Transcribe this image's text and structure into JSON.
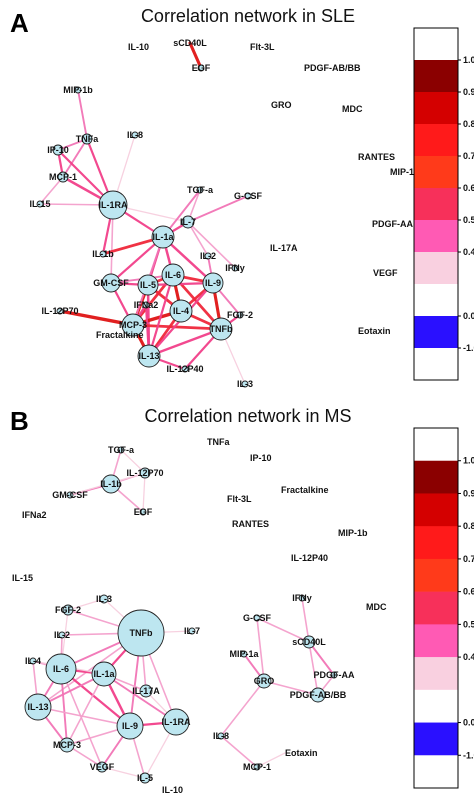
{
  "colors": {
    "node_fill": "#bde6f0",
    "node_stroke": "#222222"
  },
  "colorbar": {
    "bands": [
      "#ffffff",
      "#8b0000",
      "#d40000",
      "#ff1a1a",
      "#ff3a1a",
      "#f7305a",
      "#ff5ab4",
      "#f9d0e0",
      "#ffffff",
      "#2a10ff",
      "#ffffff"
    ],
    "ticks": [
      "1.0",
      "0.9",
      "0.8",
      "0.7",
      "0.6",
      "0.5",
      "0.4",
      "0.0",
      "-1.0"
    ]
  },
  "panels": [
    {
      "letter": "A",
      "title": "Correlation network in SLE",
      "nodes": [
        {
          "id": "sCD40L",
          "label": "sCD40L"
        },
        {
          "id": "IL-10",
          "label": "IL-10"
        },
        {
          "id": "Flt-3L",
          "label": "Flt-3L"
        },
        {
          "id": "EGF",
          "label": "EGF"
        },
        {
          "id": "PDGF-AB/BB",
          "label": "PDGF-AB/BB"
        },
        {
          "id": "MIP-1b",
          "label": "MIP-1b"
        },
        {
          "id": "GRO",
          "label": "GRO"
        },
        {
          "id": "MDC",
          "label": "MDC"
        },
        {
          "id": "IL-8",
          "label": "IL-8"
        },
        {
          "id": "TNFa",
          "label": "TNFa"
        },
        {
          "id": "IP-10",
          "label": "IP-10"
        },
        {
          "id": "RANTES",
          "label": "RANTES"
        },
        {
          "id": "MCP-1",
          "label": "MCP-1"
        },
        {
          "id": "MIP-1a",
          "label": "MIP-1a"
        },
        {
          "id": "IL-15",
          "label": "IL-15"
        },
        {
          "id": "IL-1RA",
          "label": "IL-1RA"
        },
        {
          "id": "TGF-a",
          "label": "TGF-a"
        },
        {
          "id": "G-CSF",
          "label": "G-CSF"
        },
        {
          "id": "IL-7",
          "label": "IL-7"
        },
        {
          "id": "PDGF-AA",
          "label": "PDGF-AA"
        },
        {
          "id": "IL-1a",
          "label": "IL-1a"
        },
        {
          "id": "IL-1b",
          "label": "IL-1b"
        },
        {
          "id": "IL-2",
          "label": "IL-2"
        },
        {
          "id": "IL-17A",
          "label": "IL-17A"
        },
        {
          "id": "IFNy",
          "label": "IFNy"
        },
        {
          "id": "GM-CSF",
          "label": "GM-CSF"
        },
        {
          "id": "IL-6",
          "label": "IL-6"
        },
        {
          "id": "IL-5",
          "label": "IL-5"
        },
        {
          "id": "IL-9",
          "label": "IL-9"
        },
        {
          "id": "VEGF",
          "label": "VEGF"
        },
        {
          "id": "IL-12P70",
          "label": "IL-12P70"
        },
        {
          "id": "IFNa2",
          "label": "IFNa2"
        },
        {
          "id": "IL-4",
          "label": "IL-4"
        },
        {
          "id": "FGF-2",
          "label": "FGF-2"
        },
        {
          "id": "MCP-3",
          "label": "MCP-3"
        },
        {
          "id": "TNFb",
          "label": "TNFb"
        },
        {
          "id": "Fractalkine",
          "label": "Fractalkine"
        },
        {
          "id": "Eotaxin",
          "label": "Eotaxin"
        },
        {
          "id": "IL-13",
          "label": "IL-13"
        },
        {
          "id": "IL-12P40",
          "label": "IL-12P40"
        },
        {
          "id": "IL-3",
          "label": "IL-3"
        }
      ],
      "edges": [
        [
          "sCD40L",
          "EGF",
          0.75
        ],
        [
          "TNFa",
          "IP-10",
          0.55
        ],
        [
          "TNFa",
          "MCP-1",
          0.55
        ],
        [
          "TNFa",
          "IL-1RA",
          0.6
        ],
        [
          "TNFa",
          "MIP-1b",
          0.55
        ],
        [
          "IP-10",
          "MCP-1",
          0.6
        ],
        [
          "IP-10",
          "IL-1RA",
          0.6
        ],
        [
          "MCP-1",
          "IL-15",
          0.5
        ],
        [
          "MCP-1",
          "IL-1RA",
          0.65
        ],
        [
          "IL-15",
          "IL-1RA",
          0.5
        ],
        [
          "IL-8",
          "IL-1RA",
          0.45
        ],
        [
          "IL-1RA",
          "IL-1a",
          0.6
        ],
        [
          "IL-1RA",
          "IL-1b",
          0.6
        ],
        [
          "IL-1RA",
          "GM-CSF",
          0.5
        ],
        [
          "IL-1RA",
          "IL-7",
          0.45
        ],
        [
          "TGF-a",
          "IL-7",
          0.5
        ],
        [
          "TGF-a",
          "IL-1a",
          0.55
        ],
        [
          "G-CSF",
          "IL-7",
          0.55
        ],
        [
          "IL-7",
          "IL-2",
          0.5
        ],
        [
          "IL-7",
          "IL-1a",
          0.6
        ],
        [
          "IL-7",
          "IFNy",
          0.5
        ],
        [
          "IL-1b",
          "IL-1a",
          0.7
        ],
        [
          "IL-1a",
          "IL-6",
          0.65
        ],
        [
          "IL-1a",
          "IL-5",
          0.6
        ],
        [
          "IL-1a",
          "IL-9",
          0.65
        ],
        [
          "IL-1a",
          "GM-CSF",
          0.6
        ],
        [
          "IL-2",
          "IL-9",
          0.55
        ],
        [
          "GM-CSF",
          "IL-5",
          0.6
        ],
        [
          "GM-CSF",
          "IL-6",
          0.55
        ],
        [
          "GM-CSF",
          "MCP-3",
          0.6
        ],
        [
          "IL-6",
          "IL-5",
          0.7
        ],
        [
          "IL-6",
          "IL-9",
          0.7
        ],
        [
          "IL-6",
          "IL-4",
          0.75
        ],
        [
          "IL-6",
          "TNFb",
          0.7
        ],
        [
          "IL-6",
          "MCP-3",
          0.7
        ],
        [
          "IL-5",
          "IL-4",
          0.7
        ],
        [
          "IL-5",
          "MCP-3",
          0.75
        ],
        [
          "IL-5",
          "IL-13",
          0.65
        ],
        [
          "IL-5",
          "IL-9",
          0.6
        ],
        [
          "IL-9",
          "IL-4",
          0.7
        ],
        [
          "IL-9",
          "TNFb",
          0.75
        ],
        [
          "IL-9",
          "FGF-2",
          0.55
        ],
        [
          "IL-4",
          "MCP-3",
          0.8
        ],
        [
          "IL-4",
          "TNFb",
          0.7
        ],
        [
          "IL-4",
          "IL-13",
          0.7
        ],
        [
          "IFNa2",
          "MCP-3",
          0.65
        ],
        [
          "IFNa2",
          "IL-13",
          0.6
        ],
        [
          "IL-12P70",
          "MCP-3",
          0.8
        ],
        [
          "MCP-3",
          "IL-13",
          0.75
        ],
        [
          "MCP-3",
          "TNFb",
          0.7
        ],
        [
          "TNFb",
          "IL-13",
          0.65
        ],
        [
          "TNFb",
          "IL-12P40",
          0.6
        ],
        [
          "TNFb",
          "IL-3",
          0.45
        ],
        [
          "TNFb",
          "FGF-2",
          0.6
        ],
        [
          "IL-13",
          "IL-12P40",
          0.6
        ],
        [
          "IL-6",
          "IL-13",
          0.6
        ],
        [
          "IL-1a",
          "MCP-3",
          0.55
        ],
        [
          "IL-9",
          "IL-13",
          0.6
        ]
      ]
    },
    {
      "letter": "B",
      "title": "Correlation network in MS",
      "nodes": [
        {
          "id": "TGF-a",
          "label": "TGF-a"
        },
        {
          "id": "TNFa",
          "label": "TNFa"
        },
        {
          "id": "IL-12P70",
          "label": "IL-12P70"
        },
        {
          "id": "IP-10",
          "label": "IP-10"
        },
        {
          "id": "GM-CSF",
          "label": "GM-CSF"
        },
        {
          "id": "IL-1b",
          "label": "IL-1b"
        },
        {
          "id": "Fractalkine",
          "label": "Fractalkine"
        },
        {
          "id": "Flt-3L",
          "label": "Flt-3L"
        },
        {
          "id": "EGF",
          "label": "EGF"
        },
        {
          "id": "IFNa2",
          "label": "IFNa2"
        },
        {
          "id": "RANTES",
          "label": "RANTES"
        },
        {
          "id": "MIP-1b",
          "label": "MIP-1b"
        },
        {
          "id": "IL-12P40",
          "label": "IL-12P40"
        },
        {
          "id": "IL-15",
          "label": "IL-15"
        },
        {
          "id": "IL-3",
          "label": "IL-3"
        },
        {
          "id": "IFNy",
          "label": "IFNy"
        },
        {
          "id": "FGF-2",
          "label": "FGF-2"
        },
        {
          "id": "MDC",
          "label": "MDC"
        },
        {
          "id": "G-CSF",
          "label": "G-CSF"
        },
        {
          "id": "TNFb",
          "label": "TNFb"
        },
        {
          "id": "IL-2",
          "label": "IL-2"
        },
        {
          "id": "IL-7",
          "label": "IL-7"
        },
        {
          "id": "sCD40L",
          "label": "sCD40L"
        },
        {
          "id": "IL-4",
          "label": "IL-4"
        },
        {
          "id": "IL-6",
          "label": "IL-6"
        },
        {
          "id": "IL-1a",
          "label": "IL-1a"
        },
        {
          "id": "MIP-1a",
          "label": "MIP-1a"
        },
        {
          "id": "PDGF-AA",
          "label": "PDGF-AA"
        },
        {
          "id": "GRO",
          "label": "GRO"
        },
        {
          "id": "IL-17A",
          "label": "IL-17A"
        },
        {
          "id": "PDGF-AB/BB",
          "label": "PDGF-AB/BB"
        },
        {
          "id": "IL-13",
          "label": "IL-13"
        },
        {
          "id": "IL-1RA",
          "label": "IL-1RA"
        },
        {
          "id": "IL-9",
          "label": "IL-9"
        },
        {
          "id": "IL-8",
          "label": "IL-8"
        },
        {
          "id": "MCP-3",
          "label": "MCP-3"
        },
        {
          "id": "Eotaxin",
          "label": "Eotaxin"
        },
        {
          "id": "VEGF",
          "label": "VEGF"
        },
        {
          "id": "MCP-1",
          "label": "MCP-1"
        },
        {
          "id": "IL-5",
          "label": "IL-5"
        },
        {
          "id": "IL-10",
          "label": "IL-10"
        }
      ],
      "edges": [
        [
          "TGF-a",
          "IL-1b",
          0.5
        ],
        [
          "TGF-a",
          "IL-12P70",
          0.45
        ],
        [
          "IL-12P70",
          "IL-1b",
          0.5
        ],
        [
          "IL-12P70",
          "EGF",
          0.45
        ],
        [
          "GM-CSF",
          "IL-1b",
          0.55
        ],
        [
          "IL-1b",
          "EGF",
          0.5
        ],
        [
          "FGF-2",
          "IL-3",
          0.45
        ],
        [
          "FGF-2",
          "TNFb",
          0.5
        ],
        [
          "FGF-2",
          "IL-6",
          0.45
        ],
        [
          "IL-3",
          "TNFb",
          0.45
        ],
        [
          "IL-2",
          "TNFb",
          0.5
        ],
        [
          "IL-2",
          "IL-6",
          0.5
        ],
        [
          "IL-4",
          "IL-6",
          0.5
        ],
        [
          "IL-4",
          "IL-13",
          0.5
        ],
        [
          "TNFb",
          "IL-6",
          0.55
        ],
        [
          "TNFb",
          "IL-1a",
          0.6
        ],
        [
          "TNFb",
          "IL-9",
          0.55
        ],
        [
          "TNFb",
          "IL-17A",
          0.5
        ],
        [
          "TNFb",
          "IL-1RA",
          0.5
        ],
        [
          "TNFb",
          "IL-7",
          0.45
        ],
        [
          "TNFb",
          "IL-13",
          0.5
        ],
        [
          "IL-6",
          "IL-1a",
          0.6
        ],
        [
          "IL-6",
          "IL-13",
          0.55
        ],
        [
          "IL-6",
          "MCP-3",
          0.55
        ],
        [
          "IL-6",
          "IL-9",
          0.6
        ],
        [
          "IL-6",
          "VEGF",
          0.5
        ],
        [
          "IL-1a",
          "IL-9",
          0.65
        ],
        [
          "IL-1a",
          "IL-13",
          0.55
        ],
        [
          "IL-1a",
          "MCP-3",
          0.5
        ],
        [
          "IL-1a",
          "IL-1RA",
          0.55
        ],
        [
          "IL-1a",
          "IL-17A",
          0.5
        ],
        [
          "IL-13",
          "MCP-3",
          0.55
        ],
        [
          "IL-13",
          "IL-9",
          0.5
        ],
        [
          "IL-9",
          "IL-1RA",
          0.6
        ],
        [
          "IL-9",
          "VEGF",
          0.55
        ],
        [
          "IL-9",
          "IL-5",
          0.5
        ],
        [
          "IL-9",
          "MCP-3",
          0.5
        ],
        [
          "IL-1RA",
          "IL-5",
          0.45
        ],
        [
          "IL-1RA",
          "IL-17A",
          0.45
        ],
        [
          "MCP-3",
          "VEGF",
          0.5
        ],
        [
          "VEGF",
          "IL-5",
          0.45
        ],
        [
          "IL-4",
          "IL-1a",
          0.45
        ],
        [
          "G-CSF",
          "sCD40L",
          0.5
        ],
        [
          "G-CSF",
          "GRO",
          0.5
        ],
        [
          "IFNy",
          "sCD40L",
          0.5
        ],
        [
          "sCD40L",
          "PDGF-AA",
          0.55
        ],
        [
          "sCD40L",
          "PDGF-AB/BB",
          0.5
        ],
        [
          "MIP-1a",
          "GRO",
          0.55
        ],
        [
          "GRO",
          "PDGF-AB/BB",
          0.5
        ],
        [
          "GRO",
          "IL-8",
          0.5
        ],
        [
          "PDGF-AA",
          "PDGF-AB/BB",
          0.5
        ],
        [
          "IL-8",
          "MCP-1",
          0.5
        ],
        [
          "MCP-1",
          "Eotaxin",
          0.45
        ],
        [
          "IL-12P70",
          "GM-CSF",
          0.45
        ]
      ]
    }
  ]
}
